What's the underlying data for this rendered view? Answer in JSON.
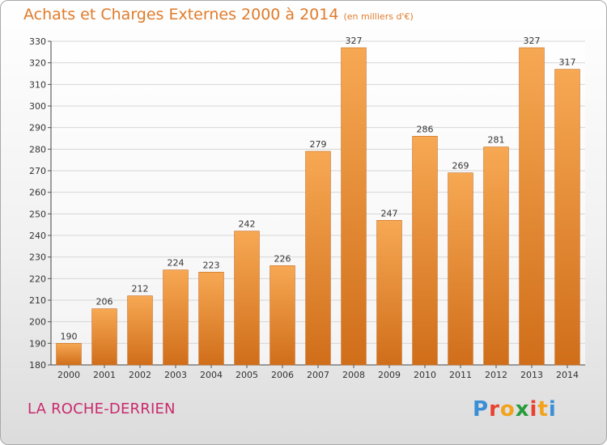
{
  "header": {
    "title": "Achats et Charges Externes 2000 à 2014",
    "unit": "(en milliers d'€)"
  },
  "footer": {
    "commune": "LA ROCHE-DERRIEN",
    "brand": "Proxiti"
  },
  "colors": {
    "bar_light": "#f7a853",
    "bar_dark": "#d06e1a",
    "title": "#e07b2a",
    "commune": "#c92a6e",
    "grid": "#d6d6d6"
  },
  "chart_data": {
    "type": "bar",
    "title": "Achats et Charges Externes 2000 à 2014",
    "subtitle": "(en milliers d'€)",
    "categories": [
      "2000",
      "2001",
      "2002",
      "2003",
      "2004",
      "2005",
      "2006",
      "2007",
      "2008",
      "2009",
      "2010",
      "2011",
      "2012",
      "2013",
      "2014"
    ],
    "values": [
      190,
      206,
      212,
      224,
      223,
      242,
      226,
      279,
      327,
      247,
      286,
      269,
      281,
      327,
      317
    ],
    "ylim": [
      180,
      330
    ],
    "yticks": [
      180,
      190,
      200,
      210,
      220,
      230,
      240,
      250,
      260,
      270,
      280,
      290,
      300,
      310,
      320,
      330
    ],
    "xlabel": "",
    "ylabel": "",
    "grid": true,
    "data_labels": true
  }
}
